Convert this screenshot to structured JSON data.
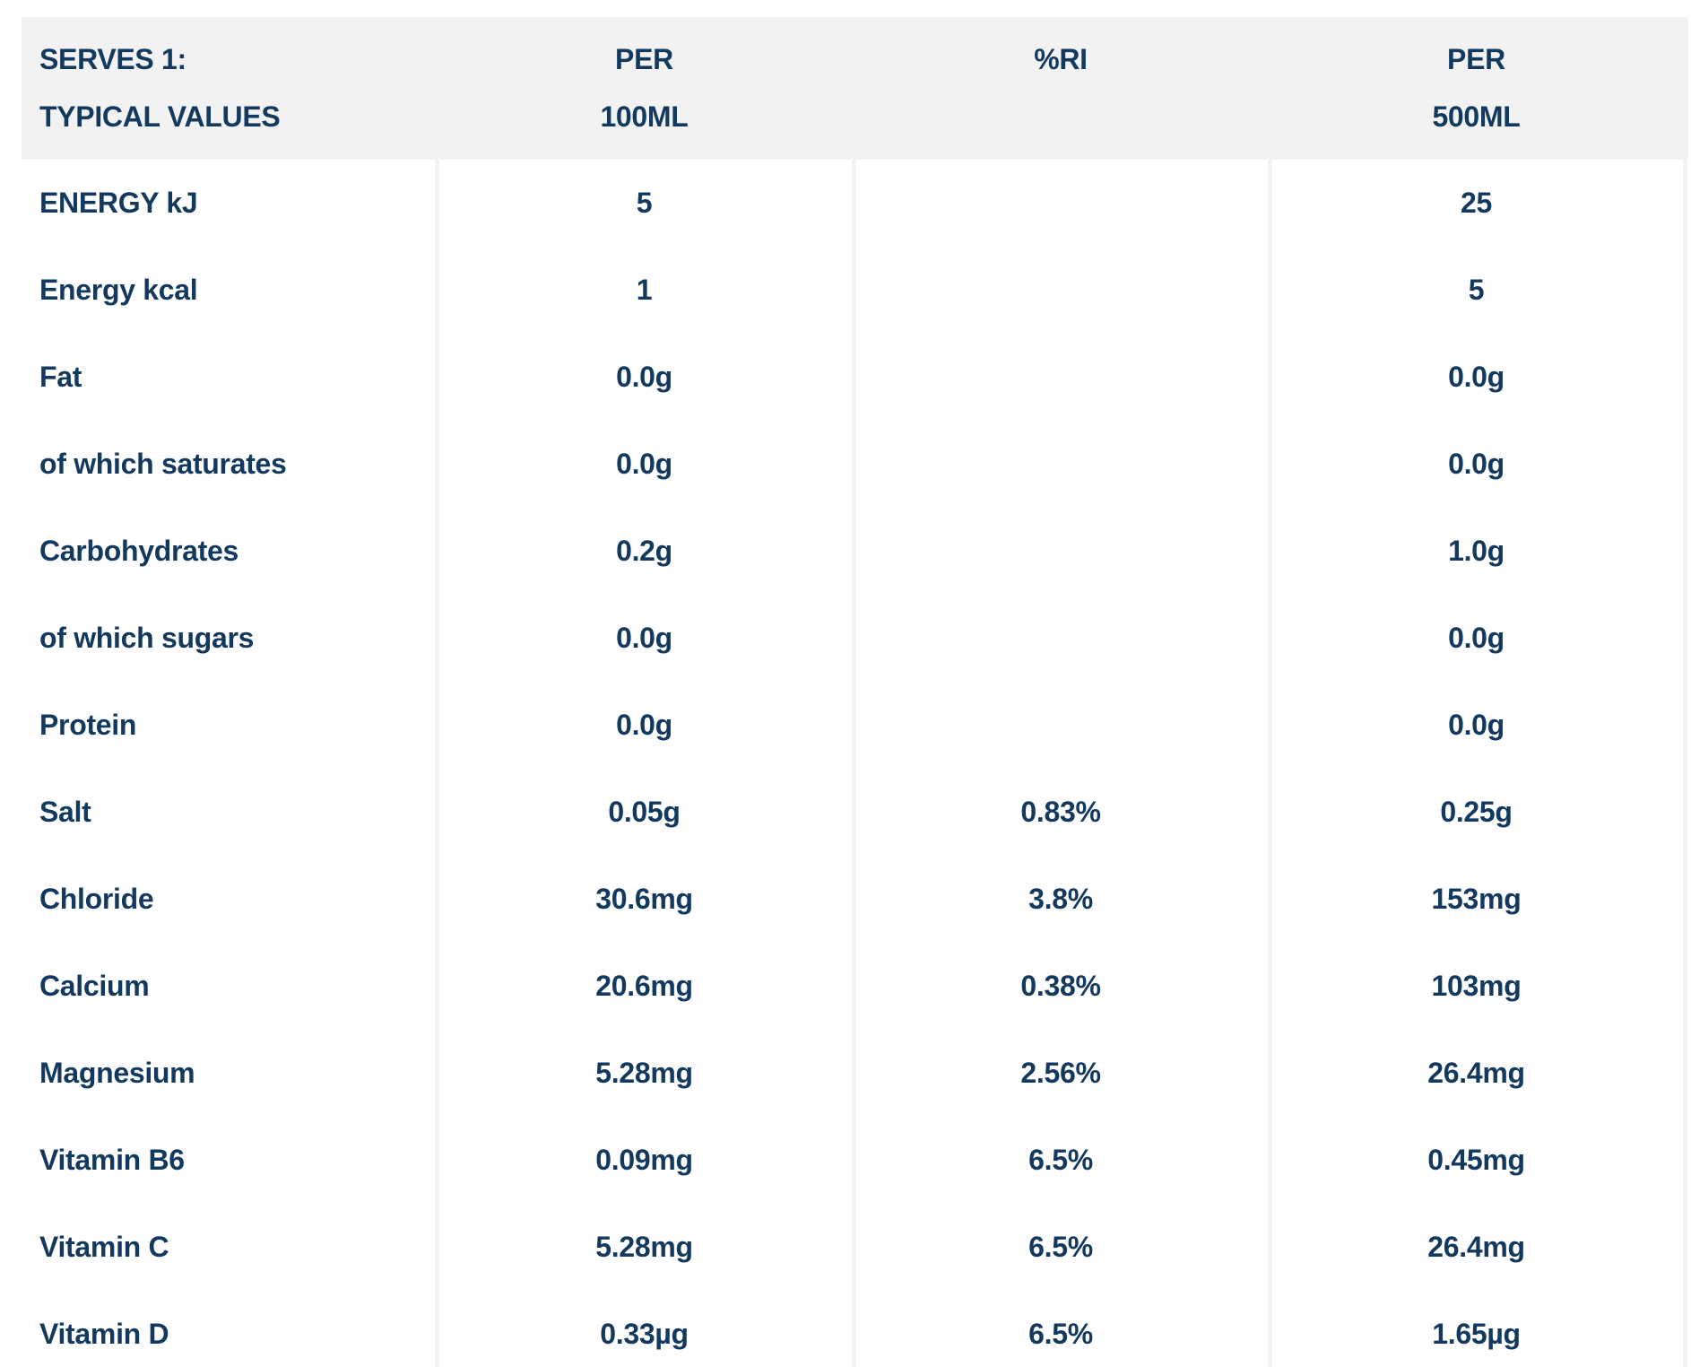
{
  "header": {
    "serves": "SERVES 1:",
    "typical_values": "TYPICAL VALUES",
    "per_100_line1": "PER",
    "per_100_line2": "100ML",
    "ri": "%RI",
    "per_500_line1": "PER",
    "per_500_line2": "500ML"
  },
  "rows": [
    {
      "label": "ENERGY kJ",
      "per_100ml": "5",
      "ri": "",
      "per_500ml": "25"
    },
    {
      "label": "Energy kcal",
      "per_100ml": "1",
      "ri": "",
      "per_500ml": "5"
    },
    {
      "label": "Fat",
      "per_100ml": "0.0g",
      "ri": "",
      "per_500ml": "0.0g"
    },
    {
      "label": "of which saturates",
      "per_100ml": "0.0g",
      "ri": "",
      "per_500ml": "0.0g"
    },
    {
      "label": "Carbohydrates",
      "per_100ml": "0.2g",
      "ri": "",
      "per_500ml": "1.0g"
    },
    {
      "label": "of which sugars",
      "per_100ml": "0.0g",
      "ri": "",
      "per_500ml": "0.0g"
    },
    {
      "label": "Protein",
      "per_100ml": "0.0g",
      "ri": "",
      "per_500ml": "0.0g"
    },
    {
      "label": "Salt",
      "per_100ml": "0.05g",
      "ri": "0.83%",
      "per_500ml": "0.25g"
    },
    {
      "label": "Chloride",
      "per_100ml": "30.6mg",
      "ri": "3.8%",
      "per_500ml": "153mg"
    },
    {
      "label": "Calcium",
      "per_100ml": "20.6mg",
      "ri": "0.38%",
      "per_500ml": "103mg"
    },
    {
      "label": "Magnesium",
      "per_100ml": "5.28mg",
      "ri": "2.56%",
      "per_500ml": "26.4mg"
    },
    {
      "label": "Vitamin B6",
      "per_100ml": "0.09mg",
      "ri": "6.5%",
      "per_500ml": "0.45mg"
    },
    {
      "label": "Vitamin C",
      "per_100ml": "5.28mg",
      "ri": "6.5%",
      "per_500ml": "26.4mg"
    },
    {
      "label": "Vitamin D",
      "per_100ml": "0.33µg",
      "ri": "6.5%",
      "per_500ml": "1.65µg"
    }
  ],
  "colors": {
    "text_navy": "#14395e",
    "header_bg": "#f2f2f2",
    "divider": "#f2f2f2",
    "background": "#ffffff"
  }
}
